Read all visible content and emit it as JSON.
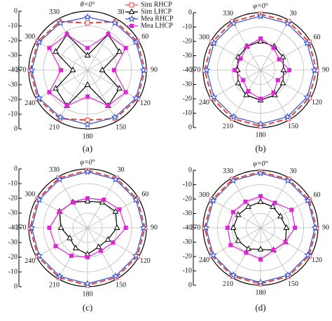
{
  "chart_data": [
    {
      "type": "polar",
      "title": "θ=0°",
      "label": "(a)",
      "theta": [
        0,
        30,
        60,
        90,
        120,
        150,
        180,
        210,
        240,
        270,
        300,
        330
      ],
      "rlim": [
        -40,
        0
      ],
      "rticks": [
        -40,
        -30,
        -20,
        -10,
        0
      ],
      "thetaticks": [
        30,
        60,
        90,
        120,
        150,
        180,
        210,
        240,
        270,
        300,
        330
      ],
      "grid": true,
      "legend": "upper right",
      "series": [
        {
          "name": "Sim RHCP",
          "color": "#e8413b",
          "marker": "square",
          "dashed": true,
          "values": [
            -8,
            -2,
            -1,
            -1,
            -1,
            -2,
            -6,
            -2,
            -1,
            -1,
            -1,
            -2
          ]
        },
        {
          "name": "Sim LHCP",
          "color": "#000000",
          "marker": "triangle",
          "values": [
            -30,
            -12,
            -15,
            -30,
            -15,
            -12,
            -30,
            -12,
            -15,
            -30,
            -15,
            -12
          ]
        },
        {
          "name": "Mea RHCP",
          "color": "#2b4fd6",
          "marker": "star",
          "values": [
            -4,
            -3,
            -2,
            -2,
            -2,
            -3,
            -3,
            -3,
            -2,
            -2,
            -2,
            -3
          ]
        },
        {
          "name": "Mea LHCP",
          "color": "#e025d6",
          "marker": "square-filled",
          "values": [
            -25,
            -12,
            -10,
            -22,
            -10,
            -12,
            -22,
            -12,
            -10,
            -22,
            -10,
            -12
          ]
        }
      ]
    },
    {
      "type": "polar",
      "title": "φ=0°",
      "label": "(b)",
      "theta": [
        0,
        30,
        60,
        90,
        120,
        150,
        180,
        210,
        240,
        270,
        300,
        330
      ],
      "rlim": [
        -40,
        0
      ],
      "rticks": [
        -40,
        -30,
        -20,
        -10,
        0
      ],
      "thetaticks": [
        30,
        60,
        90,
        120,
        150,
        180,
        210,
        240,
        270,
        300,
        330
      ],
      "grid": true,
      "series": [
        {
          "color": "#e8413b",
          "marker": "square",
          "dashed": true,
          "values": [
            -1,
            -1,
            -1,
            -1,
            -1,
            -1,
            -1,
            -1,
            -1,
            -1,
            -1,
            -1
          ]
        },
        {
          "color": "#000000",
          "marker": "triangle",
          "values": [
            -20,
            -21,
            -22,
            -24,
            -22,
            -20,
            -19,
            -20,
            -22,
            -24,
            -22,
            -21
          ]
        },
        {
          "color": "#2b4fd6",
          "marker": "star",
          "values": [
            -2.5,
            -2.5,
            -2.5,
            -2.5,
            -2.5,
            -2.5,
            -2.5,
            -2.5,
            -2.5,
            -2.5,
            -2.5,
            -2.5
          ]
        },
        {
          "color": "#e025d6",
          "marker": "square-filled",
          "values": [
            -18,
            -22,
            -25,
            -20,
            -26,
            -22,
            -20,
            -23,
            -26,
            -22,
            -24,
            -21
          ]
        }
      ]
    },
    {
      "type": "polar",
      "title": "φ=0°",
      "label": "(c)",
      "theta": [
        0,
        30,
        60,
        90,
        120,
        150,
        180,
        210,
        240,
        270,
        300,
        330
      ],
      "rlim": [
        -40,
        0
      ],
      "rticks": [
        -40,
        -30,
        -20,
        -10,
        0
      ],
      "thetaticks": [
        30,
        60,
        90,
        120,
        150,
        180,
        210,
        240,
        270,
        300,
        330
      ],
      "grid": true,
      "series": [
        {
          "color": "#e8413b",
          "marker": "square",
          "dashed": true,
          "values": [
            -1,
            -1,
            -1,
            -1,
            -1,
            -1,
            -1,
            -1,
            -1,
            -1,
            -1,
            -1
          ]
        },
        {
          "color": "#000000",
          "marker": "triangle",
          "values": [
            -22,
            -20,
            -18,
            -20,
            -24,
            -25,
            -22,
            -24,
            -26,
            -22,
            -18,
            -20
          ]
        },
        {
          "color": "#2b4fd6",
          "marker": "star",
          "values": [
            -2,
            -2,
            -2,
            -2,
            -2,
            -2,
            -2,
            -2,
            -2,
            -2,
            -2,
            -2
          ]
        },
        {
          "color": "#e025d6",
          "marker": "square-filled",
          "values": [
            -20,
            -18,
            -15,
            -14,
            -20,
            -22,
            -20,
            -18,
            -15,
            -14,
            -18,
            -20
          ]
        }
      ]
    },
    {
      "type": "polar",
      "title": "φ=0°",
      "label": "(d)",
      "theta": [
        0,
        30,
        60,
        90,
        120,
        150,
        180,
        210,
        240,
        270,
        300,
        330
      ],
      "rlim": [
        -40,
        0
      ],
      "rticks": [
        -40,
        -30,
        -20,
        -10,
        0
      ],
      "thetaticks": [
        30,
        60,
        90,
        120,
        150,
        180,
        210,
        240,
        270,
        300,
        330
      ],
      "grid": true,
      "series": [
        {
          "color": "#e8413b",
          "marker": "square",
          "dashed": true,
          "values": [
            -1,
            -1,
            -1,
            -1,
            -1,
            -1,
            -1,
            -1,
            -1,
            -1,
            -1,
            -1
          ]
        },
        {
          "color": "#000000",
          "marker": "triangle",
          "values": [
            -22,
            -23,
            -24,
            -22,
            -20,
            -22,
            -25,
            -23,
            -22,
            -21,
            -22,
            -23
          ]
        },
        {
          "color": "#2b4fd6",
          "marker": "star",
          "values": [
            -2,
            -2,
            -2,
            -2,
            -2,
            -2,
            -2,
            -2,
            -2,
            -2,
            -2,
            -2
          ]
        },
        {
          "color": "#e025d6",
          "marker": "square-filled",
          "values": [
            -18,
            -20,
            -15,
            -16,
            -20,
            -22,
            -18,
            -20,
            -16,
            -17,
            -18,
            -19
          ]
        }
      ]
    }
  ]
}
